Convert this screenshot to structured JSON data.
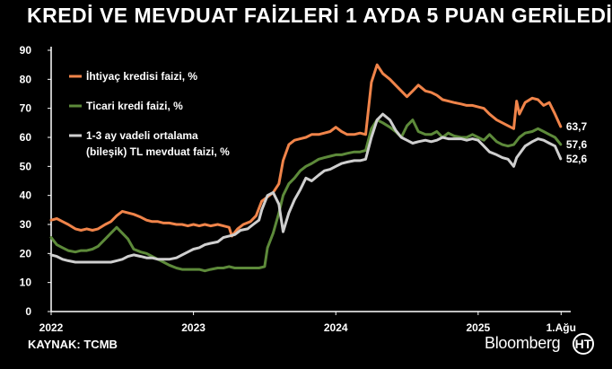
{
  "title": "KREDİ VE MEVDUAT FAİZLERİ 1 AYDA 5 PUAN GERİLEDİ",
  "source": "KAYNAK: TCMB",
  "brand": "Bloomberg",
  "brand_logo_letter": "HT",
  "colors": {
    "background": "#000000",
    "consumer_loan": "#f0844a",
    "commercial_loan": "#5d8a3a",
    "deposit": "#cfcfcf",
    "axis": "#ffffff"
  },
  "chart_data": {
    "type": "line",
    "title": "KREDİ VE MEVDUAT FAİZLERİ 1 AYDA 5 PUAN GERİLEDİ",
    "xlabel": "",
    "ylabel": "",
    "ylim": [
      0,
      90
    ],
    "yticks": [
      "0",
      "10",
      "20",
      "30",
      "40",
      "50",
      "60",
      "70",
      "80",
      "90"
    ],
    "xticks": [
      {
        "label": "2022",
        "x": 2022.0
      },
      {
        "label": "2023",
        "x": 2023.0
      },
      {
        "label": "2024",
        "x": 2024.0
      },
      {
        "label": "2025",
        "x": 2025.0
      },
      {
        "label": "1.Ağu",
        "x": 2025.583
      }
    ],
    "xlim": [
      2022.0,
      2025.6
    ],
    "grid": false,
    "legend_position": "top-left",
    "series": [
      {
        "name": "İhtiyaç kredisi faizi, %",
        "color_key": "consumer_loan",
        "end_label": "63,7",
        "points": [
          [
            2022.0,
            31.5
          ],
          [
            2022.04,
            32.0
          ],
          [
            2022.08,
            31.0
          ],
          [
            2022.12,
            30.0
          ],
          [
            2022.17,
            28.5
          ],
          [
            2022.21,
            28.0
          ],
          [
            2022.25,
            28.5
          ],
          [
            2022.29,
            28.0
          ],
          [
            2022.33,
            28.5
          ],
          [
            2022.38,
            30.0
          ],
          [
            2022.42,
            31.0
          ],
          [
            2022.46,
            33.0
          ],
          [
            2022.5,
            34.5
          ],
          [
            2022.54,
            34.0
          ],
          [
            2022.58,
            33.5
          ],
          [
            2022.63,
            32.5
          ],
          [
            2022.67,
            31.5
          ],
          [
            2022.71,
            31.0
          ],
          [
            2022.75,
            31.0
          ],
          [
            2022.79,
            30.5
          ],
          [
            2022.83,
            30.5
          ],
          [
            2022.88,
            30.0
          ],
          [
            2022.92,
            30.0
          ],
          [
            2022.96,
            29.5
          ],
          [
            2023.0,
            30.0
          ],
          [
            2023.04,
            29.5
          ],
          [
            2023.08,
            30.0
          ],
          [
            2023.12,
            29.5
          ],
          [
            2023.17,
            30.0
          ],
          [
            2023.21,
            29.5
          ],
          [
            2023.25,
            29.0
          ],
          [
            2023.27,
            26.0
          ],
          [
            2023.31,
            28.5
          ],
          [
            2023.35,
            30.0
          ],
          [
            2023.4,
            31.0
          ],
          [
            2023.44,
            33.0
          ],
          [
            2023.48,
            38.0
          ],
          [
            2023.52,
            39.5
          ],
          [
            2023.56,
            41.0
          ],
          [
            2023.6,
            44.0
          ],
          [
            2023.63,
            52.0
          ],
          [
            2023.67,
            57.5
          ],
          [
            2023.71,
            59.0
          ],
          [
            2023.75,
            59.5
          ],
          [
            2023.79,
            60.0
          ],
          [
            2023.83,
            61.0
          ],
          [
            2023.88,
            61.0
          ],
          [
            2023.92,
            61.5
          ],
          [
            2023.96,
            62.0
          ],
          [
            2024.0,
            63.5
          ],
          [
            2024.04,
            62.0
          ],
          [
            2024.08,
            61.0
          ],
          [
            2024.13,
            61.0
          ],
          [
            2024.17,
            61.5
          ],
          [
            2024.21,
            61.0
          ],
          [
            2024.25,
            79.0
          ],
          [
            2024.29,
            85.0
          ],
          [
            2024.33,
            82.0
          ],
          [
            2024.38,
            80.0
          ],
          [
            2024.42,
            78.0
          ],
          [
            2024.46,
            76.0
          ],
          [
            2024.5,
            74.0
          ],
          [
            2024.54,
            76.0
          ],
          [
            2024.58,
            78.0
          ],
          [
            2024.63,
            76.0
          ],
          [
            2024.67,
            75.5
          ],
          [
            2024.71,
            74.5
          ],
          [
            2024.75,
            73.0
          ],
          [
            2024.79,
            72.5
          ],
          [
            2024.83,
            72.0
          ],
          [
            2024.88,
            71.5
          ],
          [
            2024.92,
            71.0
          ],
          [
            2024.96,
            71.0
          ],
          [
            2025.0,
            70.5
          ],
          [
            2025.04,
            70.0
          ],
          [
            2025.08,
            68.0
          ],
          [
            2025.13,
            66.0
          ],
          [
            2025.17,
            65.0
          ],
          [
            2025.21,
            64.0
          ],
          [
            2025.25,
            63.0
          ],
          [
            2025.27,
            72.5
          ],
          [
            2025.29,
            68.0
          ],
          [
            2025.33,
            72.0
          ],
          [
            2025.38,
            73.5
          ],
          [
            2025.42,
            73.0
          ],
          [
            2025.46,
            71.0
          ],
          [
            2025.5,
            72.0
          ],
          [
            2025.54,
            68.0
          ],
          [
            2025.58,
            63.7
          ]
        ]
      },
      {
        "name": "Ticari kredi faizi, %",
        "color_key": "commercial_loan",
        "end_label": "57,6",
        "points": [
          [
            2022.0,
            25.5
          ],
          [
            2022.04,
            23.0
          ],
          [
            2022.08,
            22.0
          ],
          [
            2022.12,
            21.0
          ],
          [
            2022.17,
            20.5
          ],
          [
            2022.21,
            21.0
          ],
          [
            2022.25,
            21.0
          ],
          [
            2022.29,
            21.5
          ],
          [
            2022.33,
            22.5
          ],
          [
            2022.38,
            25.0
          ],
          [
            2022.42,
            27.0
          ],
          [
            2022.46,
            29.0
          ],
          [
            2022.5,
            27.0
          ],
          [
            2022.54,
            25.0
          ],
          [
            2022.58,
            21.5
          ],
          [
            2022.63,
            20.5
          ],
          [
            2022.67,
            20.0
          ],
          [
            2022.71,
            19.0
          ],
          [
            2022.75,
            18.0
          ],
          [
            2022.79,
            17.0
          ],
          [
            2022.83,
            16.0
          ],
          [
            2022.88,
            15.0
          ],
          [
            2022.92,
            14.5
          ],
          [
            2022.96,
            14.5
          ],
          [
            2023.0,
            14.5
          ],
          [
            2023.04,
            14.5
          ],
          [
            2023.08,
            14.0
          ],
          [
            2023.12,
            14.5
          ],
          [
            2023.17,
            15.0
          ],
          [
            2023.21,
            15.0
          ],
          [
            2023.25,
            15.5
          ],
          [
            2023.29,
            15.0
          ],
          [
            2023.33,
            15.0
          ],
          [
            2023.38,
            15.0
          ],
          [
            2023.42,
            15.0
          ],
          [
            2023.46,
            15.0
          ],
          [
            2023.5,
            15.5
          ],
          [
            2023.52,
            22.0
          ],
          [
            2023.56,
            27.0
          ],
          [
            2023.6,
            34.0
          ],
          [
            2023.63,
            40.0
          ],
          [
            2023.67,
            44.0
          ],
          [
            2023.71,
            46.0
          ],
          [
            2023.75,
            48.5
          ],
          [
            2023.79,
            50.0
          ],
          [
            2023.83,
            51.0
          ],
          [
            2023.88,
            52.5
          ],
          [
            2023.92,
            53.0
          ],
          [
            2023.96,
            53.5
          ],
          [
            2024.0,
            54.0
          ],
          [
            2024.04,
            54.0
          ],
          [
            2024.08,
            54.5
          ],
          [
            2024.13,
            55.0
          ],
          [
            2024.17,
            55.0
          ],
          [
            2024.21,
            55.5
          ],
          [
            2024.25,
            63.0
          ],
          [
            2024.29,
            66.0
          ],
          [
            2024.33,
            65.0
          ],
          [
            2024.38,
            63.5
          ],
          [
            2024.42,
            62.0
          ],
          [
            2024.46,
            60.0
          ],
          [
            2024.5,
            64.0
          ],
          [
            2024.54,
            66.0
          ],
          [
            2024.58,
            62.0
          ],
          [
            2024.63,
            61.0
          ],
          [
            2024.67,
            61.0
          ],
          [
            2024.71,
            62.0
          ],
          [
            2024.75,
            60.0
          ],
          [
            2024.79,
            61.5
          ],
          [
            2024.83,
            60.5
          ],
          [
            2024.88,
            60.0
          ],
          [
            2024.92,
            60.0
          ],
          [
            2024.96,
            61.0
          ],
          [
            2025.0,
            60.0
          ],
          [
            2025.04,
            59.0
          ],
          [
            2025.08,
            61.0
          ],
          [
            2025.13,
            58.5
          ],
          [
            2025.17,
            57.5
          ],
          [
            2025.21,
            57.0
          ],
          [
            2025.25,
            57.5
          ],
          [
            2025.29,
            60.0
          ],
          [
            2025.33,
            61.5
          ],
          [
            2025.38,
            62.0
          ],
          [
            2025.42,
            63.0
          ],
          [
            2025.46,
            62.0
          ],
          [
            2025.5,
            61.0
          ],
          [
            2025.54,
            60.0
          ],
          [
            2025.58,
            57.6
          ]
        ]
      },
      {
        "name": "1-3 ay vadeli ortalama (bileşik) TL mevduat faizi, %",
        "legend_lines": [
          "1-3 ay vadeli ortalama",
          "(bileşik) TL mevduat faizi, %"
        ],
        "color_key": "deposit",
        "end_label": "52,6",
        "points": [
          [
            2022.0,
            19.5
          ],
          [
            2022.04,
            19.0
          ],
          [
            2022.08,
            18.0
          ],
          [
            2022.12,
            17.5
          ],
          [
            2022.17,
            17.0
          ],
          [
            2022.21,
            17.0
          ],
          [
            2022.25,
            17.0
          ],
          [
            2022.29,
            17.0
          ],
          [
            2022.33,
            17.0
          ],
          [
            2022.38,
            17.0
          ],
          [
            2022.42,
            17.0
          ],
          [
            2022.46,
            17.5
          ],
          [
            2022.5,
            18.0
          ],
          [
            2022.54,
            19.0
          ],
          [
            2022.58,
            19.5
          ],
          [
            2022.63,
            19.0
          ],
          [
            2022.67,
            18.5
          ],
          [
            2022.71,
            18.5
          ],
          [
            2022.75,
            18.0
          ],
          [
            2022.79,
            18.0
          ],
          [
            2022.83,
            18.0
          ],
          [
            2022.88,
            18.5
          ],
          [
            2022.92,
            19.5
          ],
          [
            2022.96,
            20.5
          ],
          [
            2023.0,
            21.5
          ],
          [
            2023.04,
            22.0
          ],
          [
            2023.08,
            23.0
          ],
          [
            2023.12,
            23.5
          ],
          [
            2023.17,
            24.0
          ],
          [
            2023.21,
            25.5
          ],
          [
            2023.25,
            26.0
          ],
          [
            2023.29,
            26.5
          ],
          [
            2023.33,
            28.0
          ],
          [
            2023.38,
            28.5
          ],
          [
            2023.42,
            30.0
          ],
          [
            2023.46,
            31.5
          ],
          [
            2023.48,
            35.0
          ],
          [
            2023.52,
            40.0
          ],
          [
            2023.56,
            41.0
          ],
          [
            2023.6,
            37.0
          ],
          [
            2023.63,
            27.5
          ],
          [
            2023.67,
            34.0
          ],
          [
            2023.71,
            38.5
          ],
          [
            2023.75,
            42.0
          ],
          [
            2023.79,
            46.0
          ],
          [
            2023.83,
            45.0
          ],
          [
            2023.88,
            47.0
          ],
          [
            2023.92,
            48.5
          ],
          [
            2023.96,
            49.0
          ],
          [
            2024.0,
            50.0
          ],
          [
            2024.04,
            51.0
          ],
          [
            2024.08,
            51.5
          ],
          [
            2024.13,
            52.0
          ],
          [
            2024.17,
            52.0
          ],
          [
            2024.21,
            52.5
          ],
          [
            2024.25,
            60.0
          ],
          [
            2024.29,
            66.0
          ],
          [
            2024.33,
            68.0
          ],
          [
            2024.38,
            66.0
          ],
          [
            2024.42,
            62.5
          ],
          [
            2024.46,
            60.0
          ],
          [
            2024.5,
            59.0
          ],
          [
            2024.54,
            58.0
          ],
          [
            2024.58,
            58.5
          ],
          [
            2024.63,
            59.0
          ],
          [
            2024.67,
            58.5
          ],
          [
            2024.71,
            59.0
          ],
          [
            2024.75,
            60.0
          ],
          [
            2024.79,
            59.5
          ],
          [
            2024.83,
            59.5
          ],
          [
            2024.88,
            59.5
          ],
          [
            2024.92,
            59.0
          ],
          [
            2024.96,
            59.5
          ],
          [
            2025.0,
            59.0
          ],
          [
            2025.04,
            57.0
          ],
          [
            2025.08,
            55.0
          ],
          [
            2025.13,
            54.0
          ],
          [
            2025.17,
            53.0
          ],
          [
            2025.21,
            52.5
          ],
          [
            2025.25,
            50.0
          ],
          [
            2025.27,
            53.0
          ],
          [
            2025.33,
            57.0
          ],
          [
            2025.38,
            58.5
          ],
          [
            2025.42,
            59.5
          ],
          [
            2025.46,
            59.0
          ],
          [
            2025.5,
            58.0
          ],
          [
            2025.54,
            57.0
          ],
          [
            2025.58,
            52.6
          ]
        ]
      }
    ]
  }
}
